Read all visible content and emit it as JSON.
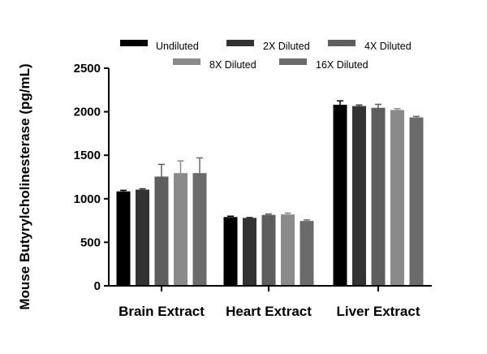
{
  "chart_data": {
    "type": "bar",
    "title": "",
    "xlabel": "",
    "ylabel": "Mouse Butyrylcholinesterase (pg/mL)",
    "ylim": [
      0,
      2500
    ],
    "yticks": [
      0,
      500,
      1000,
      1500,
      2000,
      2500
    ],
    "grid": false,
    "legend_position": "top",
    "categories": [
      "Brain Extract",
      "Heart Extract",
      "Liver Extract"
    ],
    "series": [
      {
        "name": "Undiluted",
        "color": "#000000",
        "values": [
          1085,
          790,
          2080
        ],
        "errors": [
          12,
          10,
          45
        ]
      },
      {
        "name": "2X Diluted",
        "color": "#333333",
        "values": [
          1105,
          780,
          2065
        ],
        "errors": [
          10,
          5,
          12
        ]
      },
      {
        "name": "4X Diluted",
        "color": "#5e5e5e",
        "values": [
          1255,
          815,
          2045
        ],
        "errors": [
          140,
          10,
          40
        ]
      },
      {
        "name": "8X Diluted",
        "color": "#8a8a8a",
        "values": [
          1295,
          820,
          2020
        ],
        "errors": [
          140,
          15,
          15
        ]
      },
      {
        "name": "16X Diluted",
        "color": "#6b6b6b",
        "values": [
          1295,
          745,
          1935
        ],
        "errors": [
          175,
          12,
          12
        ]
      }
    ]
  }
}
